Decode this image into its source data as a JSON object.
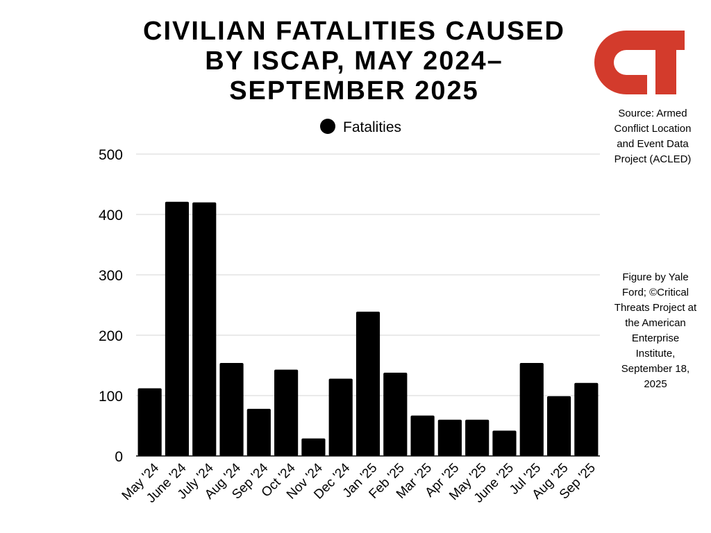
{
  "colors": {
    "bar": "#000000",
    "grid": "#d4d4d4",
    "logo": "#d33b2c"
  },
  "logo": {
    "icon": "ct-logo-icon",
    "text": "CT"
  },
  "notes": {
    "source": "Source: Armed Conflict Location and Event Data Project (ACLED)",
    "credit": "Figure by Yale Ford; ©Critical Threats Project at the American Enterprise Institute, September 18, 2025"
  },
  "chart_data": {
    "type": "bar",
    "title": "CIVILIAN FATALITIES CAUSED BY ISCAP, MAY 2024–SEPTEMBER 2025",
    "categories": [
      "May '24",
      "June '24",
      "July '24",
      "Aug '24",
      "Sep '24",
      "Oct '24",
      "Nov '24",
      "Dec '24",
      "Jan '25",
      "Feb '25",
      "Mar '25",
      "Apr '25",
      "May '25",
      "June '25",
      "Jul '25",
      "Aug '25",
      "Sep '25"
    ],
    "series": [
      {
        "name": "Fatalities",
        "values": [
          112,
          421,
          420,
          154,
          78,
          143,
          29,
          128,
          239,
          138,
          67,
          60,
          60,
          42,
          154,
          99,
          121
        ]
      }
    ],
    "ylim": [
      0,
      500
    ],
    "yticks": [
      0,
      100,
      200,
      300,
      400,
      500
    ],
    "grid": true,
    "legend": "top-center",
    "xlabel": "",
    "ylabel": ""
  }
}
